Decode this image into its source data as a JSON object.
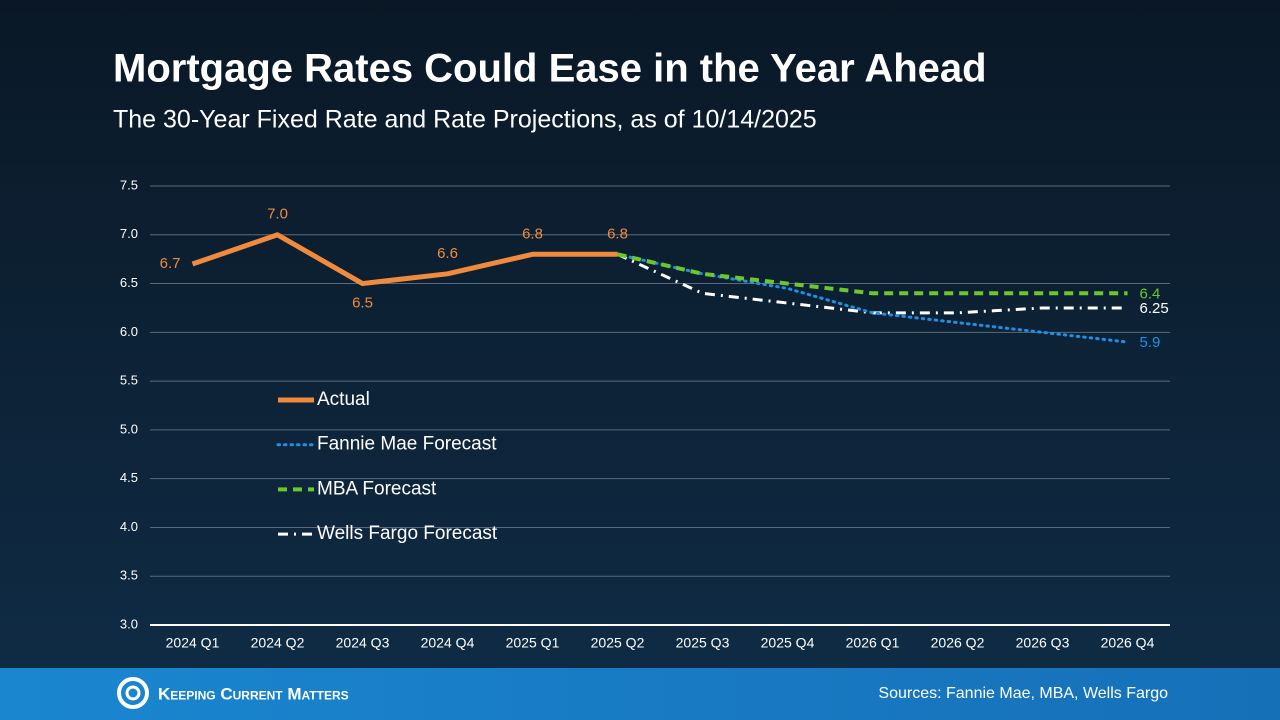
{
  "chart_data": {
    "type": "line",
    "title": "Mortgage Rates Could Ease in the Year Ahead",
    "subtitle": "The 30-Year Fixed Rate and Rate Projections, as of 10/14/2025",
    "categories": [
      "2024 Q1",
      "2024 Q2",
      "2024 Q3",
      "2024 Q4",
      "2025 Q1",
      "2025 Q2",
      "2025 Q3",
      "2025 Q4",
      "2026 Q1",
      "2026 Q2",
      "2026 Q3",
      "2026 Q4"
    ],
    "series": [
      {
        "name": "Actual",
        "color": "#f08a3c",
        "style": "solid",
        "values": [
          6.7,
          7.0,
          6.5,
          6.6,
          6.8,
          6.8,
          null,
          null,
          null,
          null,
          null,
          null
        ],
        "value_labels": [
          "6.7",
          "7.0",
          "6.5",
          "6.6",
          "6.8",
          "6.8",
          null,
          null,
          null,
          null,
          null,
          null
        ]
      },
      {
        "name": "Fannie Mae Forecast",
        "color": "#1e90e6",
        "style": "dotted",
        "values": [
          null,
          null,
          null,
          null,
          null,
          6.8,
          6.6,
          6.45,
          6.2,
          6.1,
          6.0,
          5.9
        ]
      },
      {
        "name": "MBA Forecast",
        "color": "#6cc72c",
        "style": "dashed",
        "values": [
          null,
          null,
          null,
          null,
          null,
          6.8,
          6.6,
          6.5,
          6.4,
          6.4,
          6.4,
          6.4
        ]
      },
      {
        "name": "Wells Fargo Forecast",
        "color": "#ffffff",
        "style": "dashdot",
        "values": [
          null,
          null,
          null,
          null,
          null,
          6.8,
          6.4,
          6.3,
          6.2,
          6.2,
          6.25,
          6.25
        ]
      }
    ],
    "ylim": [
      3,
      7.5
    ],
    "yticks": [
      {
        "value": 3,
        "label": "3.0"
      },
      3.5,
      {
        "value": 4,
        "label": "4.0"
      },
      4.5,
      {
        "value": 5,
        "label": "5.0"
      },
      5.5,
      {
        "value": 6,
        "label": "6.0"
      },
      6.5,
      {
        "value": 7,
        "label": "7.0"
      },
      7.5
    ],
    "grid": true,
    "brand": "Keeping Current Matters",
    "source": "Sources: Fannie Mae, MBA, Wells Fargo"
  }
}
